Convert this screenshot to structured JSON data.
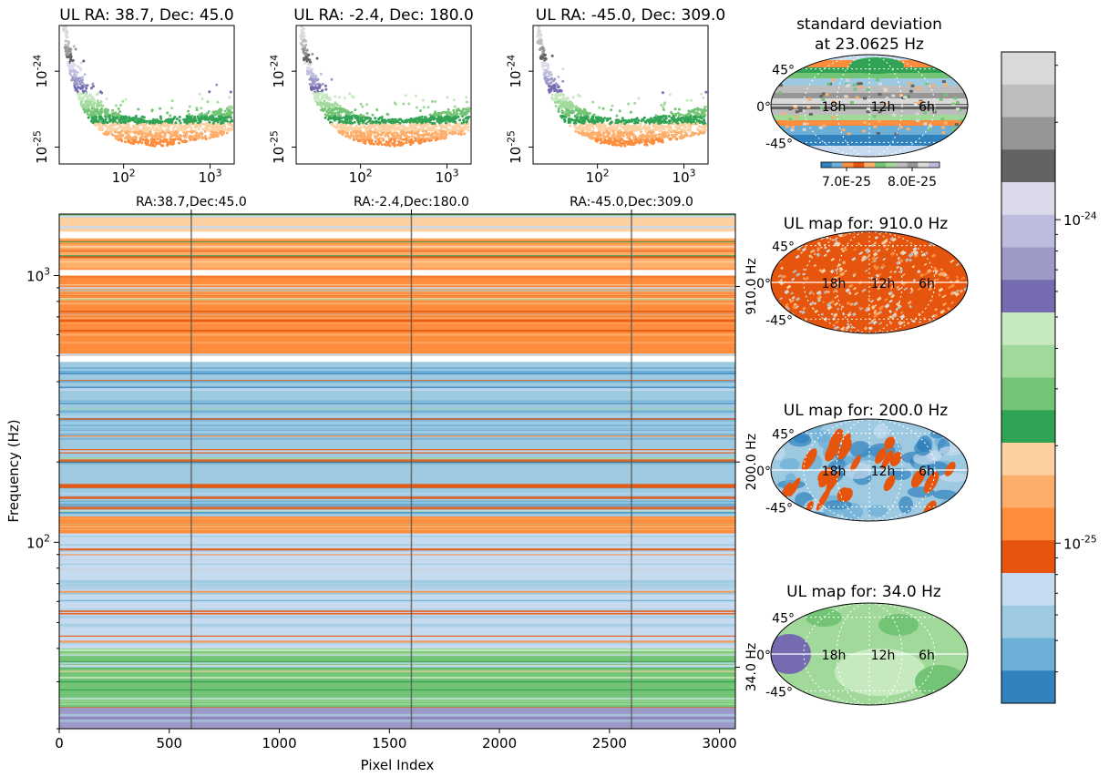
{
  "chart_data": [
    {
      "type": "scatter",
      "id": "ul-ra-38",
      "title": "UL RA: 38.7, Dec: 45.0",
      "x_scale": "log",
      "y_scale": "log",
      "xlim": [
        18,
        1900
      ],
      "ylim": [
        6e-26,
        4e-24
      ],
      "x_ticks": [
        {
          "value": 100,
          "label": "10^2"
        },
        {
          "value": 1000,
          "label": "10^3"
        }
      ],
      "y_ticks": [
        {
          "value": 1e-25,
          "label": "10^-25"
        },
        {
          "value": 1e-24,
          "label": "10^-24"
        }
      ],
      "profile": [
        [
          20,
          3.2e-24
        ],
        [
          22,
          1.8e-24
        ],
        [
          25,
          9e-25
        ],
        [
          30,
          5e-25
        ],
        [
          40,
          2.8e-25
        ],
        [
          60,
          1.8e-25
        ],
        [
          100,
          1.4e-25
        ],
        [
          200,
          1.25e-25
        ],
        [
          400,
          1.3e-25
        ],
        [
          700,
          1.5e-25
        ],
        [
          1000,
          1.6e-25
        ],
        [
          1500,
          1.8e-25
        ],
        [
          1800,
          1.9e-25
        ]
      ]
    },
    {
      "type": "scatter",
      "id": "ul-ra-minus2",
      "title": "UL RA: -2.4, Dec: 180.0",
      "x_scale": "log",
      "y_scale": "log",
      "xlim": [
        18,
        1900
      ],
      "ylim": [
        6e-26,
        4e-24
      ],
      "x_ticks": [
        {
          "value": 100,
          "label": "10^2"
        },
        {
          "value": 1000,
          "label": "10^3"
        }
      ],
      "y_ticks": [
        {
          "value": 1e-25,
          "label": "10^-25"
        },
        {
          "value": 1e-24,
          "label": "10^-24"
        }
      ],
      "profile": [
        [
          20,
          3.2e-24
        ],
        [
          22,
          1.8e-24
        ],
        [
          25,
          9e-25
        ],
        [
          30,
          5e-25
        ],
        [
          40,
          2.8e-25
        ],
        [
          60,
          1.8e-25
        ],
        [
          100,
          1.4e-25
        ],
        [
          200,
          1.25e-25
        ],
        [
          400,
          1.3e-25
        ],
        [
          700,
          1.5e-25
        ],
        [
          1000,
          1.6e-25
        ],
        [
          1500,
          1.8e-25
        ],
        [
          1800,
          1.9e-25
        ]
      ]
    },
    {
      "type": "scatter",
      "id": "ul-ra-minus45",
      "title": "UL RA: -45.0, Dec: 309.0",
      "x_scale": "log",
      "y_scale": "log",
      "xlim": [
        18,
        1900
      ],
      "ylim": [
        6e-26,
        4e-24
      ],
      "x_ticks": [
        {
          "value": 100,
          "label": "10^2"
        },
        {
          "value": 1000,
          "label": "10^3"
        }
      ],
      "y_ticks": [
        {
          "value": 1e-25,
          "label": "10^-25"
        },
        {
          "value": 1e-24,
          "label": "10^-24"
        }
      ],
      "profile": [
        [
          20,
          3.2e-24
        ],
        [
          22,
          1.8e-24
        ],
        [
          25,
          9e-25
        ],
        [
          30,
          5e-25
        ],
        [
          40,
          2.8e-25
        ],
        [
          60,
          1.8e-25
        ],
        [
          100,
          1.4e-25
        ],
        [
          200,
          1.25e-25
        ],
        [
          400,
          1.3e-25
        ],
        [
          700,
          1.5e-25
        ],
        [
          1000,
          1.6e-25
        ],
        [
          1500,
          1.8e-25
        ],
        [
          1800,
          1.9e-25
        ]
      ]
    },
    {
      "type": "heatmap",
      "id": "main-heatmap",
      "xlabel": "Pixel Index",
      "ylabel": "Frequency (Hz)",
      "x_scale": "linear",
      "y_scale": "log",
      "xlim": [
        0,
        3072
      ],
      "ylim": [
        20,
        1700
      ],
      "x_ticks": [
        0,
        500,
        1000,
        1500,
        2000,
        2500,
        3000
      ],
      "y_ticks": [
        {
          "value": 100,
          "label": "10^2"
        },
        {
          "value": 1000,
          "label": "10^3"
        }
      ],
      "right_ticks": [
        {
          "value": 910,
          "label": "910.0 Hz"
        },
        {
          "value": 200,
          "label": "200.0 Hz"
        },
        {
          "value": 34,
          "label": "34.0 Hz"
        }
      ],
      "top_ticks": [
        {
          "value": 600,
          "label": "RA:38.7,Dec:45.0"
        },
        {
          "value": 1600,
          "label": "RA:-2.4,Dec:180.0"
        },
        {
          "value": 2600,
          "label": "RA:-45.0,Dec:309.0"
        }
      ],
      "gaps_hz": [
        [
          1380,
          1460
        ],
        [
          1000,
          1050
        ],
        [
          475,
          500
        ]
      ],
      "bands": [
        {
          "from": 1460,
          "to": 1700,
          "color_index": 12
        },
        {
          "from": 1050,
          "to": 1380,
          "color_index": 13
        },
        {
          "from": 500,
          "to": 1000,
          "color_index": 14
        },
        {
          "from": 125,
          "to": 475,
          "color_index": 17
        },
        {
          "from": 108,
          "to": 125,
          "color_index": 14
        },
        {
          "from": 40,
          "to": 108,
          "color_index": 16
        },
        {
          "from": 24,
          "to": 40,
          "color_index": 10
        },
        {
          "from": 20,
          "to": 24,
          "color_index": 6
        }
      ]
    },
    {
      "type": "heatmap",
      "id": "map-std",
      "title": "standard deviation\nat 23.0625 Hz",
      "projection": "mollweide",
      "colorbar_ticks": [
        "7.0E-25",
        "8.0E-25"
      ]
    },
    {
      "type": "heatmap",
      "id": "map-910",
      "title": "UL map for: 910.0 Hz",
      "projection": "mollweide"
    },
    {
      "type": "heatmap",
      "id": "map-200",
      "title": "UL map for: 200.0 Hz",
      "projection": "mollweide"
    },
    {
      "type": "heatmap",
      "id": "map-34",
      "title": "UL map for: 34.0 Hz",
      "projection": "mollweide"
    },
    {
      "type": "colorbar",
      "id": "main-colorbar",
      "scale": "log",
      "range": [
        3.2e-26,
        3.3e-24
      ],
      "ticks": [
        {
          "value": 1e-24,
          "label": "10^-24"
        },
        {
          "value": 1e-25,
          "label": "10^-25"
        }
      ]
    }
  ],
  "map_labels": {
    "lat": [
      "45°",
      "0°",
      "-45°"
    ],
    "ra": [
      "18h",
      "12h",
      "6h"
    ]
  },
  "palette": [
    "#d9d9d9",
    "#bdbdbd",
    "#969696",
    "#636363",
    "#dadaeb",
    "#bcbddc",
    "#9e9ac8",
    "#756bb1",
    "#c7e9c0",
    "#a1d99b",
    "#74c476",
    "#31a354",
    "#fdd0a2",
    "#fdae6b",
    "#fd8d3c",
    "#e6550d",
    "#c6dbef",
    "#9ecae1",
    "#6baed6",
    "#3182bd"
  ]
}
